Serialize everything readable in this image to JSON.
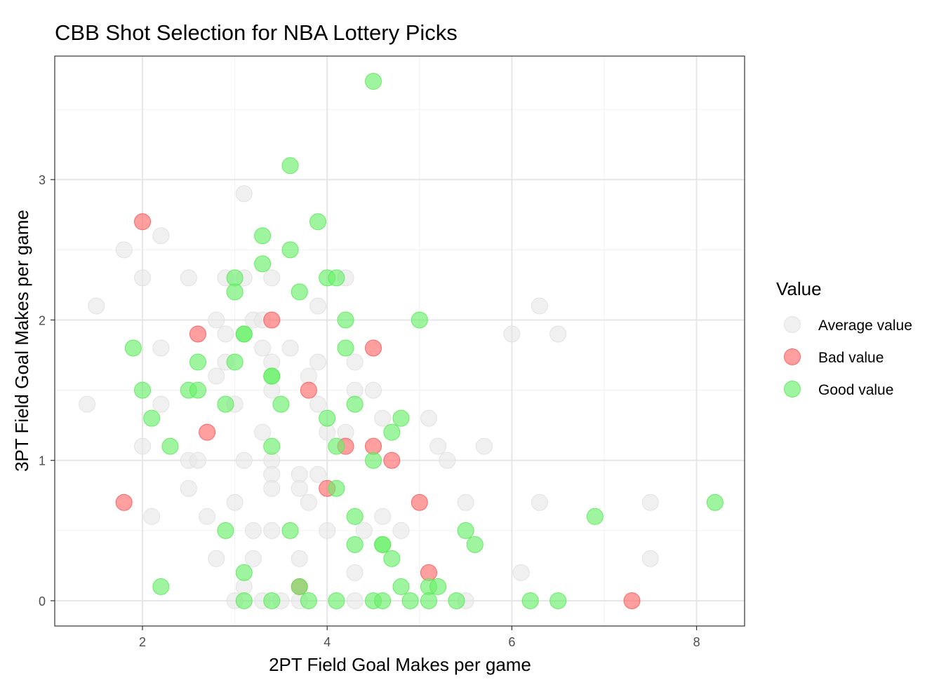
{
  "chart_data": {
    "type": "scatter",
    "title": "CBB Shot Selection for NBA Lottery Picks",
    "xlabel": "2PT Field Goal Makes per game",
    "ylabel": "3PT Field Goal Makes per game",
    "xlim": [
      1.05,
      8.52
    ],
    "ylim": [
      -0.18,
      3.88
    ],
    "x_ticks": [
      2,
      4,
      6,
      8
    ],
    "y_ticks": [
      0,
      1,
      2,
      3
    ],
    "x_minor_ticks": [
      3,
      5,
      7
    ],
    "y_minor_ticks": [
      0.5,
      1.5,
      2.5,
      3.5
    ],
    "grid": true,
    "legend": {
      "title": "Value",
      "position": "right",
      "entries": [
        "Average value",
        "Bad value",
        "Good value"
      ]
    },
    "colors": {
      "Average value": "#e8e8e8",
      "Bad value": "#ff6b6b",
      "Good value": "#6cf06c"
    },
    "point_alpha": 0.65,
    "series": [
      {
        "name": "Average value",
        "points": [
          [
            1.4,
            1.4
          ],
          [
            1.5,
            2.1
          ],
          [
            1.8,
            2.5
          ],
          [
            2.0,
            2.3
          ],
          [
            2.0,
            1.1
          ],
          [
            2.1,
            0.6
          ],
          [
            2.2,
            2.6
          ],
          [
            2.2,
            1.8
          ],
          [
            2.2,
            1.4
          ],
          [
            2.5,
            2.3
          ],
          [
            2.5,
            1.0
          ],
          [
            2.5,
            0.8
          ],
          [
            2.6,
            1.0
          ],
          [
            2.7,
            0.6
          ],
          [
            2.8,
            2.0
          ],
          [
            2.8,
            1.6
          ],
          [
            2.8,
            0.3
          ],
          [
            2.9,
            2.3
          ],
          [
            2.9,
            1.9
          ],
          [
            2.9,
            1.7
          ],
          [
            3.0,
            1.4
          ],
          [
            3.0,
            0.7
          ],
          [
            3.0,
            0.0
          ],
          [
            3.1,
            2.9
          ],
          [
            3.1,
            2.3
          ],
          [
            3.1,
            1.0
          ],
          [
            3.1,
            0.1
          ],
          [
            3.2,
            2.0
          ],
          [
            3.2,
            0.5
          ],
          [
            3.2,
            0.3
          ],
          [
            3.3,
            2.0
          ],
          [
            3.3,
            1.8
          ],
          [
            3.3,
            1.2
          ],
          [
            3.3,
            0.0
          ],
          [
            3.4,
            2.3
          ],
          [
            3.4,
            1.7
          ],
          [
            3.4,
            1.5
          ],
          [
            3.4,
            1.0
          ],
          [
            3.4,
            0.9
          ],
          [
            3.4,
            0.8
          ],
          [
            3.4,
            0.5
          ],
          [
            3.5,
            0.0
          ],
          [
            3.6,
            1.8
          ],
          [
            3.7,
            0.9
          ],
          [
            3.7,
            0.8
          ],
          [
            3.7,
            0.3
          ],
          [
            3.7,
            0.0
          ],
          [
            3.8,
            1.6
          ],
          [
            3.8,
            0.7
          ],
          [
            3.9,
            2.1
          ],
          [
            3.9,
            1.7
          ],
          [
            3.9,
            1.4
          ],
          [
            3.9,
            0.9
          ],
          [
            4.0,
            1.2
          ],
          [
            4.0,
            0.5
          ],
          [
            4.2,
            2.3
          ],
          [
            4.2,
            1.2
          ],
          [
            4.3,
            1.7
          ],
          [
            4.3,
            1.5
          ],
          [
            4.3,
            0.2
          ],
          [
            4.3,
            0.0
          ],
          [
            4.4,
            0.5
          ],
          [
            4.5,
            1.5
          ],
          [
            4.6,
            1.3
          ],
          [
            4.6,
            0.6
          ],
          [
            4.8,
            0.5
          ],
          [
            5.1,
            1.3
          ],
          [
            5.2,
            1.1
          ],
          [
            5.3,
            1.0
          ],
          [
            5.5,
            0.7
          ],
          [
            5.5,
            0.0
          ],
          [
            5.7,
            1.1
          ],
          [
            6.0,
            1.9
          ],
          [
            6.1,
            0.2
          ],
          [
            6.3,
            2.1
          ],
          [
            6.3,
            0.7
          ],
          [
            6.5,
            1.9
          ],
          [
            7.5,
            0.7
          ],
          [
            7.5,
            0.3
          ]
        ]
      },
      {
        "name": "Bad value",
        "points": [
          [
            1.8,
            0.7
          ],
          [
            2.0,
            2.7
          ],
          [
            2.6,
            1.9
          ],
          [
            2.7,
            1.2
          ],
          [
            3.4,
            2.0
          ],
          [
            3.7,
            0.1
          ],
          [
            3.8,
            1.5
          ],
          [
            4.0,
            0.8
          ],
          [
            4.2,
            1.1
          ],
          [
            4.5,
            1.8
          ],
          [
            4.5,
            1.1
          ],
          [
            4.7,
            1.0
          ],
          [
            5.0,
            0.7
          ],
          [
            5.1,
            0.2
          ],
          [
            7.3,
            0.0
          ]
        ]
      },
      {
        "name": "Good value",
        "points": [
          [
            1.9,
            1.8
          ],
          [
            2.0,
            1.5
          ],
          [
            2.1,
            1.3
          ],
          [
            2.2,
            0.1
          ],
          [
            2.3,
            1.1
          ],
          [
            2.5,
            1.5
          ],
          [
            2.6,
            1.7
          ],
          [
            2.6,
            1.5
          ],
          [
            2.9,
            1.4
          ],
          [
            2.9,
            0.5
          ],
          [
            3.0,
            2.3
          ],
          [
            3.0,
            2.2
          ],
          [
            3.0,
            1.7
          ],
          [
            3.1,
            1.9
          ],
          [
            3.1,
            1.9
          ],
          [
            3.1,
            0.2
          ],
          [
            3.1,
            0.0
          ],
          [
            3.3,
            2.6
          ],
          [
            3.3,
            2.4
          ],
          [
            3.4,
            1.6
          ],
          [
            3.4,
            1.6
          ],
          [
            3.4,
            1.1
          ],
          [
            3.4,
            0.0
          ],
          [
            3.5,
            1.4
          ],
          [
            3.6,
            3.1
          ],
          [
            3.6,
            2.5
          ],
          [
            3.6,
            0.5
          ],
          [
            3.7,
            2.2
          ],
          [
            3.7,
            0.1
          ],
          [
            3.8,
            0.0
          ],
          [
            3.9,
            2.7
          ],
          [
            4.0,
            2.3
          ],
          [
            4.0,
            1.3
          ],
          [
            4.1,
            2.3
          ],
          [
            4.1,
            1.1
          ],
          [
            4.1,
            0.8
          ],
          [
            4.1,
            0.0
          ],
          [
            4.2,
            2.0
          ],
          [
            4.2,
            1.8
          ],
          [
            4.3,
            1.4
          ],
          [
            4.3,
            0.6
          ],
          [
            4.3,
            0.4
          ],
          [
            4.5,
            3.7
          ],
          [
            4.5,
            1.0
          ],
          [
            4.5,
            0.0
          ],
          [
            4.6,
            0.4
          ],
          [
            4.6,
            0.4
          ],
          [
            4.6,
            0.0
          ],
          [
            4.7,
            1.2
          ],
          [
            4.7,
            0.3
          ],
          [
            4.8,
            1.3
          ],
          [
            4.8,
            0.1
          ],
          [
            4.9,
            0.0
          ],
          [
            5.0,
            2.0
          ],
          [
            5.1,
            0.1
          ],
          [
            5.1,
            0.0
          ],
          [
            5.2,
            0.1
          ],
          [
            5.4,
            0.0
          ],
          [
            5.5,
            0.5
          ],
          [
            5.6,
            0.4
          ],
          [
            6.2,
            0.0
          ],
          [
            6.5,
            0.0
          ],
          [
            6.9,
            0.6
          ],
          [
            8.2,
            0.7
          ]
        ]
      }
    ]
  }
}
